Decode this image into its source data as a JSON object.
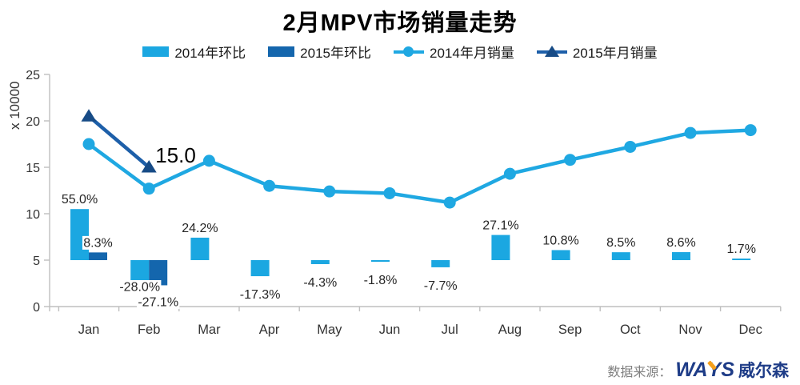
{
  "title": "2月MPV市场销量走势",
  "legend": {
    "position": "top",
    "items": [
      {
        "label": "2014年环比",
        "type": "bar",
        "color_key": "blue2014"
      },
      {
        "label": "2015年环比",
        "type": "bar",
        "color_key": "blue2015"
      },
      {
        "label": "2014年月销量",
        "type": "line-circle",
        "color_key": "line2014"
      },
      {
        "label": "2015年月销量",
        "type": "line-triangle",
        "color_key": "line2015"
      }
    ]
  },
  "colors": {
    "blue2014": "#1BA7E1",
    "blue2015": "#1466AD",
    "line2014": "#1FA8E2",
    "line2015": "#1D5FA9",
    "marker2015": "#174B86",
    "axis": "#BFBFBF",
    "axis_text": "#333333",
    "label_text": "#262626",
    "title_text": "#000000",
    "source_text": "#7F7F7F",
    "logo_navy": "#1E3C87",
    "logo_orange": "#F6A01B"
  },
  "chart_data": {
    "type": "combo-bar-line",
    "title": "2月MPV市场销量走势",
    "categories": [
      "Jan",
      "Feb",
      "Mar",
      "Apr",
      "May",
      "Jun",
      "Jul",
      "Aug",
      "Sep",
      "Oct",
      "Nov",
      "Dec"
    ],
    "y_axis": {
      "title": "x 10000",
      "min": 0,
      "max": 25,
      "step": 5,
      "tick_labels": [
        "0",
        "5",
        "10",
        "15",
        "20",
        "25"
      ]
    },
    "gridlines": false,
    "legend_position": "top",
    "bar_baseline_value": 5,
    "percent_per_axis_unit": 10,
    "bar_series": [
      {
        "name": "2014年环比",
        "type": "bar",
        "unit": "%",
        "color_key": "blue2014",
        "values_pct": [
          55.0,
          -28.0,
          24.2,
          -17.3,
          -4.3,
          -1.8,
          -7.7,
          27.1,
          10.8,
          8.5,
          8.6,
          1.7
        ],
        "labels": [
          "55.0%",
          "-28.0%",
          "24.2%",
          "-17.3%",
          "-4.3%",
          "-1.8%",
          "-7.7%",
          "27.1%",
          "10.8%",
          "8.5%",
          "8.6%",
          "1.7%"
        ]
      },
      {
        "name": "2015年环比",
        "type": "bar",
        "unit": "%",
        "color_key": "blue2015",
        "values_pct": [
          8.3,
          -27.1,
          null,
          null,
          null,
          null,
          null,
          null,
          null,
          null,
          null,
          null
        ],
        "labels": [
          "8.3%",
          "-27.1%",
          null,
          null,
          null,
          null,
          null,
          null,
          null,
          null,
          null,
          null
        ]
      }
    ],
    "line_series": [
      {
        "name": "2014年月销量",
        "type": "line",
        "marker": "circle",
        "color_key": "line2014",
        "values": [
          17.5,
          12.7,
          15.7,
          13.0,
          12.4,
          12.2,
          11.2,
          14.3,
          15.8,
          17.2,
          18.7,
          19.0
        ]
      },
      {
        "name": "2015年月销量",
        "type": "line",
        "marker": "triangle",
        "color_key": "line2015",
        "values": [
          20.5,
          15.0,
          null,
          null,
          null,
          null,
          null,
          null,
          null,
          null,
          null,
          null
        ],
        "point_label": {
          "index": 1,
          "text": "15.0"
        }
      }
    ]
  },
  "footer": {
    "source_label": "数据来源：",
    "logo_wa": "WA",
    "logo_y": "Y",
    "logo_s": "S",
    "logo_cn": "威尔森"
  }
}
